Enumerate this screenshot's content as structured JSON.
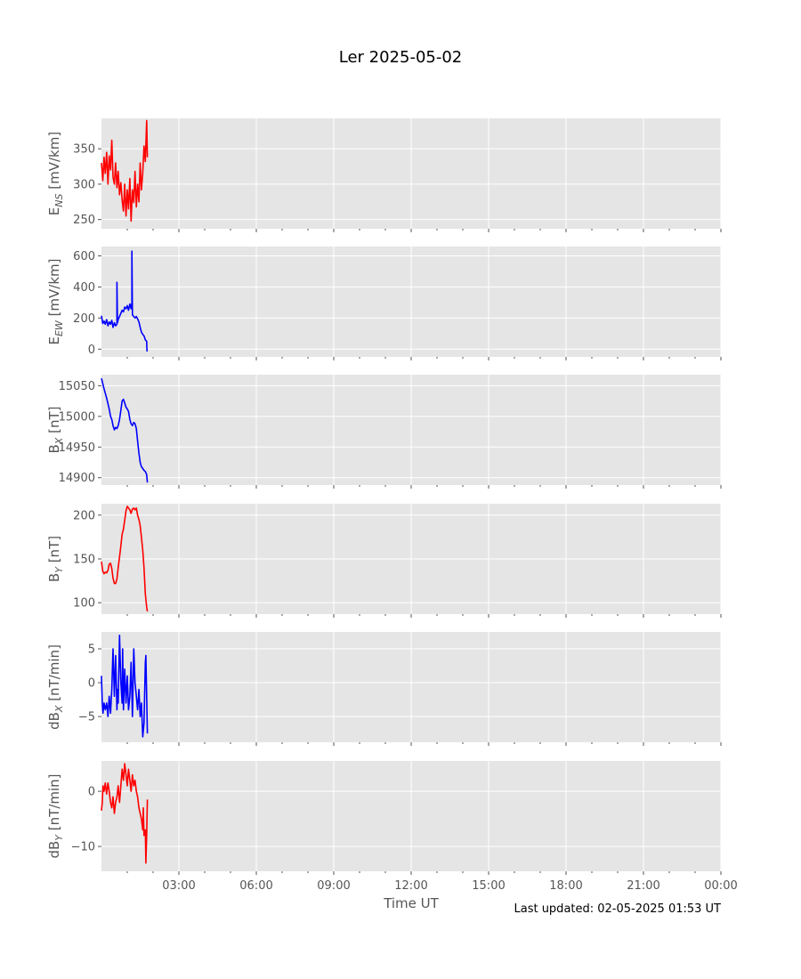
{
  "title": "Ler 2025-05-02",
  "xlabel": "Time UT",
  "footer": "Last updated: 02-05-2025 01:53 UT",
  "x_ticks": [
    "03:00",
    "06:00",
    "09:00",
    "12:00",
    "15:00",
    "18:00",
    "21:00",
    "00:00"
  ],
  "colors": {
    "red": "#ff0000",
    "blue": "#0000ff",
    "panel_bg": "#e5e5e5",
    "grid": "#ffffff",
    "text": "#555555"
  },
  "chart_data": [
    {
      "type": "line",
      "ylabel_main": "E",
      "ylabel_sub": "NS",
      "ylabel_unit": " [mV/km]",
      "color": "red",
      "ylim": [
        237,
        393
      ],
      "yticks": [
        250,
        300,
        350
      ],
      "ytick_labels": [
        "250",
        "300",
        "350"
      ],
      "x_hours": [
        0.0,
        0.05,
        0.1,
        0.15,
        0.2,
        0.25,
        0.3,
        0.35,
        0.4,
        0.45,
        0.5,
        0.55,
        0.6,
        0.65,
        0.7,
        0.75,
        0.8,
        0.85,
        0.9,
        0.95,
        1.0,
        1.05,
        1.1,
        1.15,
        1.2,
        1.25,
        1.3,
        1.35,
        1.4,
        1.45,
        1.5,
        1.55,
        1.6,
        1.65,
        1.7,
        1.75,
        1.78
      ],
      "values": [
        330,
        305,
        338,
        315,
        345,
        300,
        340,
        320,
        362,
        310,
        300,
        330,
        295,
        318,
        285,
        302,
        278,
        262,
        300,
        255,
        292,
        265,
        308,
        248,
        292,
        274,
        318,
        268,
        300,
        275,
        330,
        292,
        316,
        354,
        332,
        390,
        338
      ]
    },
    {
      "type": "line",
      "ylabel_main": "E",
      "ylabel_sub": "EW",
      "ylabel_unit": " [mV/km]",
      "color": "blue",
      "ylim": [
        -50,
        660
      ],
      "yticks": [
        0,
        200,
        400,
        600
      ],
      "ytick_labels": [
        "0",
        "200",
        "400",
        "600"
      ],
      "x_hours": [
        0.0,
        0.05,
        0.1,
        0.15,
        0.2,
        0.25,
        0.3,
        0.35,
        0.4,
        0.45,
        0.5,
        0.55,
        0.6,
        0.6,
        0.62,
        0.65,
        0.7,
        0.75,
        0.8,
        0.85,
        0.9,
        0.95,
        1.0,
        1.05,
        1.1,
        1.15,
        1.18,
        1.18,
        1.2,
        1.25,
        1.3,
        1.35,
        1.4,
        1.45,
        1.5,
        1.55,
        1.6,
        1.65,
        1.7,
        1.75,
        1.76,
        1.77
      ],
      "values": [
        215,
        165,
        180,
        160,
        190,
        150,
        175,
        160,
        185,
        140,
        170,
        150,
        160,
        430,
        170,
        190,
        210,
        230,
        250,
        240,
        270,
        260,
        280,
        250,
        290,
        260,
        300,
        630,
        220,
        210,
        200,
        210,
        195,
        175,
        140,
        110,
        95,
        85,
        60,
        50,
        10,
        -15
      ]
    },
    {
      "type": "line",
      "ylabel_main": "B",
      "ylabel_sub": "X",
      "ylabel_unit": " [nT]",
      "color": "blue",
      "ylim": [
        14888,
        15068
      ],
      "yticks": [
        14900,
        14950,
        15000,
        15050
      ],
      "ytick_labels": [
        "14900",
        "14950",
        "15000",
        "15050"
      ],
      "x_hours": [
        0.0,
        0.1,
        0.2,
        0.3,
        0.35,
        0.4,
        0.45,
        0.5,
        0.55,
        0.6,
        0.65,
        0.7,
        0.75,
        0.8,
        0.85,
        0.9,
        0.95,
        1.0,
        1.05,
        1.1,
        1.15,
        1.2,
        1.25,
        1.3,
        1.35,
        1.4,
        1.45,
        1.5,
        1.55,
        1.6,
        1.65,
        1.7,
        1.75,
        1.78
      ],
      "values": [
        15062,
        15045,
        15030,
        15012,
        15000,
        14995,
        14985,
        14978,
        14982,
        14980,
        14985,
        14995,
        15010,
        15025,
        15028,
        15022,
        15015,
        15012,
        15008,
        14995,
        14988,
        14985,
        14990,
        14988,
        14980,
        14960,
        14940,
        14925,
        14918,
        14915,
        14912,
        14910,
        14905,
        14892
      ]
    },
    {
      "type": "line",
      "ylabel_main": "B",
      "ylabel_sub": "Y",
      "ylabel_unit": " [nT]",
      "color": "red",
      "ylim": [
        87,
        213
      ],
      "yticks": [
        100,
        150,
        200
      ],
      "ytick_labels": [
        "100",
        "150",
        "200"
      ],
      "x_hours": [
        0.0,
        0.05,
        0.1,
        0.15,
        0.2,
        0.25,
        0.3,
        0.35,
        0.4,
        0.45,
        0.5,
        0.55,
        0.6,
        0.65,
        0.7,
        0.75,
        0.8,
        0.85,
        0.9,
        0.95,
        1.0,
        1.05,
        1.1,
        1.15,
        1.2,
        1.25,
        1.3,
        1.35,
        1.4,
        1.45,
        1.5,
        1.55,
        1.6,
        1.65,
        1.7,
        1.75,
        1.78
      ],
      "values": [
        147,
        136,
        133,
        135,
        134,
        137,
        144,
        145,
        139,
        128,
        122,
        122,
        127,
        140,
        152,
        165,
        178,
        184,
        194,
        205,
        210,
        208,
        206,
        202,
        207,
        208,
        206,
        208,
        200,
        195,
        188,
        175,
        160,
        140,
        110,
        95,
        90
      ]
    },
    {
      "type": "line",
      "ylabel_main": "dB",
      "ylabel_sub": "X",
      "ylabel_unit": " [nT/min]",
      "color": "blue",
      "ylim": [
        -8.8,
        7.5
      ],
      "yticks": [
        -5,
        0,
        5
      ],
      "ytick_labels": [
        "−5",
        "0",
        "5"
      ],
      "x_hours": [
        0.0,
        0.03,
        0.06,
        0.1,
        0.15,
        0.2,
        0.25,
        0.3,
        0.35,
        0.4,
        0.45,
        0.5,
        0.55,
        0.6,
        0.62,
        0.65,
        0.7,
        0.75,
        0.8,
        0.82,
        0.85,
        0.9,
        0.95,
        1.0,
        1.05,
        1.1,
        1.15,
        1.2,
        1.25,
        1.3,
        1.35,
        1.4,
        1.45,
        1.5,
        1.55,
        1.6,
        1.65,
        1.7,
        1.72,
        1.75,
        1.78
      ],
      "values": [
        1,
        -3,
        -4.5,
        -3,
        -4,
        -3,
        -5,
        -2,
        -4.5,
        -1,
        5,
        -2,
        4,
        -4,
        -1,
        -3,
        7,
        0,
        -3,
        5,
        -4,
        2,
        -3,
        1,
        -4,
        -2,
        3,
        -5,
        5,
        0,
        -2,
        -4,
        -1,
        -5,
        -3,
        -8,
        -6,
        3,
        4,
        -2,
        -7.5
      ]
    },
    {
      "type": "line",
      "ylabel_main": "dB",
      "ylabel_sub": "Y",
      "ylabel_unit": " [nT/min]",
      "color": "red",
      "ylim": [
        -14.5,
        5.5
      ],
      "yticks": [
        -10,
        0
      ],
      "ytick_labels": [
        "−10",
        "0"
      ],
      "x_hours": [
        0.0,
        0.03,
        0.06,
        0.1,
        0.15,
        0.2,
        0.25,
        0.3,
        0.35,
        0.4,
        0.45,
        0.5,
        0.55,
        0.6,
        0.65,
        0.7,
        0.75,
        0.8,
        0.85,
        0.9,
        0.95,
        1.0,
        1.05,
        1.1,
        1.15,
        1.2,
        1.25,
        1.3,
        1.35,
        1.4,
        1.45,
        1.5,
        1.55,
        1.6,
        1.62,
        1.65,
        1.7,
        1.72,
        1.75,
        1.78
      ],
      "values": [
        -3.5,
        -2,
        1,
        0,
        1.5,
        -0.5,
        1.5,
        0,
        -2,
        -3,
        -1,
        -4,
        -2,
        -1,
        1,
        -2,
        1,
        4,
        2,
        5,
        3,
        1,
        4,
        2,
        0,
        3,
        1,
        2,
        0,
        -1,
        -3,
        -4,
        -5,
        -7,
        -3,
        -8,
        -7,
        -13,
        -8,
        -1.5
      ]
    }
  ]
}
